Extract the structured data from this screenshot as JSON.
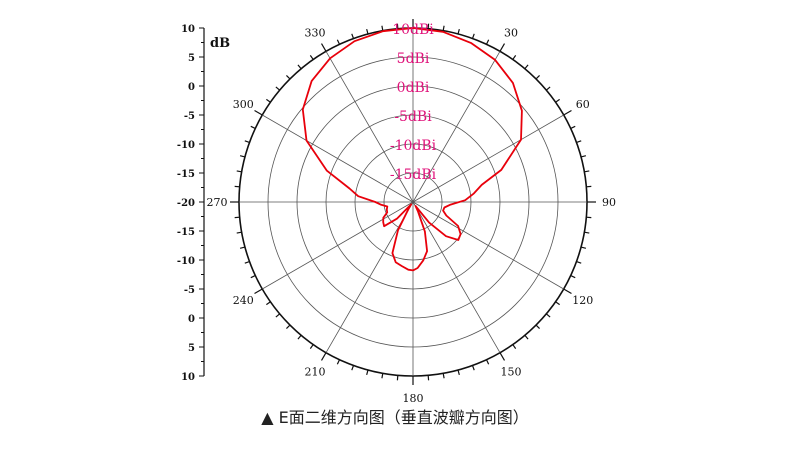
{
  "caption": "▲ E面二维方向图（垂直波瓣方向图）",
  "chart_data": {
    "type": "polar",
    "title": "",
    "radial_unit": "dB",
    "radial_range": [
      -20,
      10
    ],
    "ring_labels": [
      "10dBi",
      "5dBi",
      "0dBi",
      "-5dBi",
      "-10dBi",
      "-15dBi"
    ],
    "ring_values": [
      10,
      5,
      0,
      -5,
      -10,
      -15
    ],
    "angle_labels": [
      "0",
      "30",
      "60",
      "90",
      "120",
      "150",
      "180",
      "210",
      "240",
      "270",
      "300",
      "330"
    ],
    "angle_ticks": [
      0,
      30,
      60,
      90,
      120,
      150,
      180,
      210,
      240,
      270,
      300,
      330
    ],
    "scale_ticks": [
      "10",
      "5",
      "0",
      "-5",
      "-10",
      "-15",
      "-20",
      "-15",
      "-10",
      "-5",
      "0",
      "5",
      "10"
    ],
    "grid": true,
    "series": [
      {
        "color": "#e8000b",
        "points": [
          {
            "angle": 0,
            "value": 10
          },
          {
            "angle": 10,
            "value": 9.8
          },
          {
            "angle": 20,
            "value": 9.2
          },
          {
            "angle": 30,
            "value": 8.3
          },
          {
            "angle": 40,
            "value": 6.8
          },
          {
            "angle": 50,
            "value": 4.5
          },
          {
            "angle": 60,
            "value": 1.5
          },
          {
            "angle": 70,
            "value": -3.8
          },
          {
            "angle": 76,
            "value": -7.8
          },
          {
            "angle": 82,
            "value": -9.4
          },
          {
            "angle": 88,
            "value": -11
          },
          {
            "angle": 94,
            "value": -13.5
          },
          {
            "angle": 100,
            "value": -14.5
          },
          {
            "angle": 106,
            "value": -14.6
          },
          {
            "angle": 112,
            "value": -13.8
          },
          {
            "angle": 118,
            "value": -11.2
          },
          {
            "angle": 124,
            "value": -10.1
          },
          {
            "angle": 130,
            "value": -9.8
          },
          {
            "angle": 136,
            "value": -11.8
          },
          {
            "angle": 142,
            "value": -15.5
          },
          {
            "angle": 148,
            "value": -19.2
          },
          {
            "angle": 152,
            "value": -18.2
          },
          {
            "angle": 158,
            "value": -14.5
          },
          {
            "angle": 164,
            "value": -11.2
          },
          {
            "angle": 170,
            "value": -9.8
          },
          {
            "angle": 176,
            "value": -8.6
          },
          {
            "angle": 180,
            "value": -8.2
          },
          {
            "angle": 184,
            "value": -8.3
          },
          {
            "angle": 190,
            "value": -8.8
          },
          {
            "angle": 196,
            "value": -9.2
          },
          {
            "angle": 202,
            "value": -10.5
          },
          {
            "angle": 208,
            "value": -14.5
          },
          {
            "angle": 213,
            "value": -18.5
          },
          {
            "angle": 218,
            "value": -19.5
          },
          {
            "angle": 224,
            "value": -16
          },
          {
            "angle": 230,
            "value": -13.5
          },
          {
            "angle": 236,
            "value": -13.8
          },
          {
            "angle": 242,
            "value": -14.2
          },
          {
            "angle": 248,
            "value": -15.2
          },
          {
            "angle": 254,
            "value": -15.3
          },
          {
            "angle": 260,
            "value": -15.5
          },
          {
            "angle": 265,
            "value": -14.5
          },
          {
            "angle": 270,
            "value": -13.5
          },
          {
            "angle": 276,
            "value": -10.5
          },
          {
            "angle": 282,
            "value": -8.8
          },
          {
            "angle": 290,
            "value": -4.2
          },
          {
            "angle": 300,
            "value": 1.2
          },
          {
            "angle": 310,
            "value": 4.8
          },
          {
            "angle": 320,
            "value": 7.2
          },
          {
            "angle": 330,
            "value": 8.6
          },
          {
            "angle": 340,
            "value": 9.5
          },
          {
            "angle": 350,
            "value": 9.9
          },
          {
            "angle": 360,
            "value": 10
          }
        ]
      }
    ]
  }
}
